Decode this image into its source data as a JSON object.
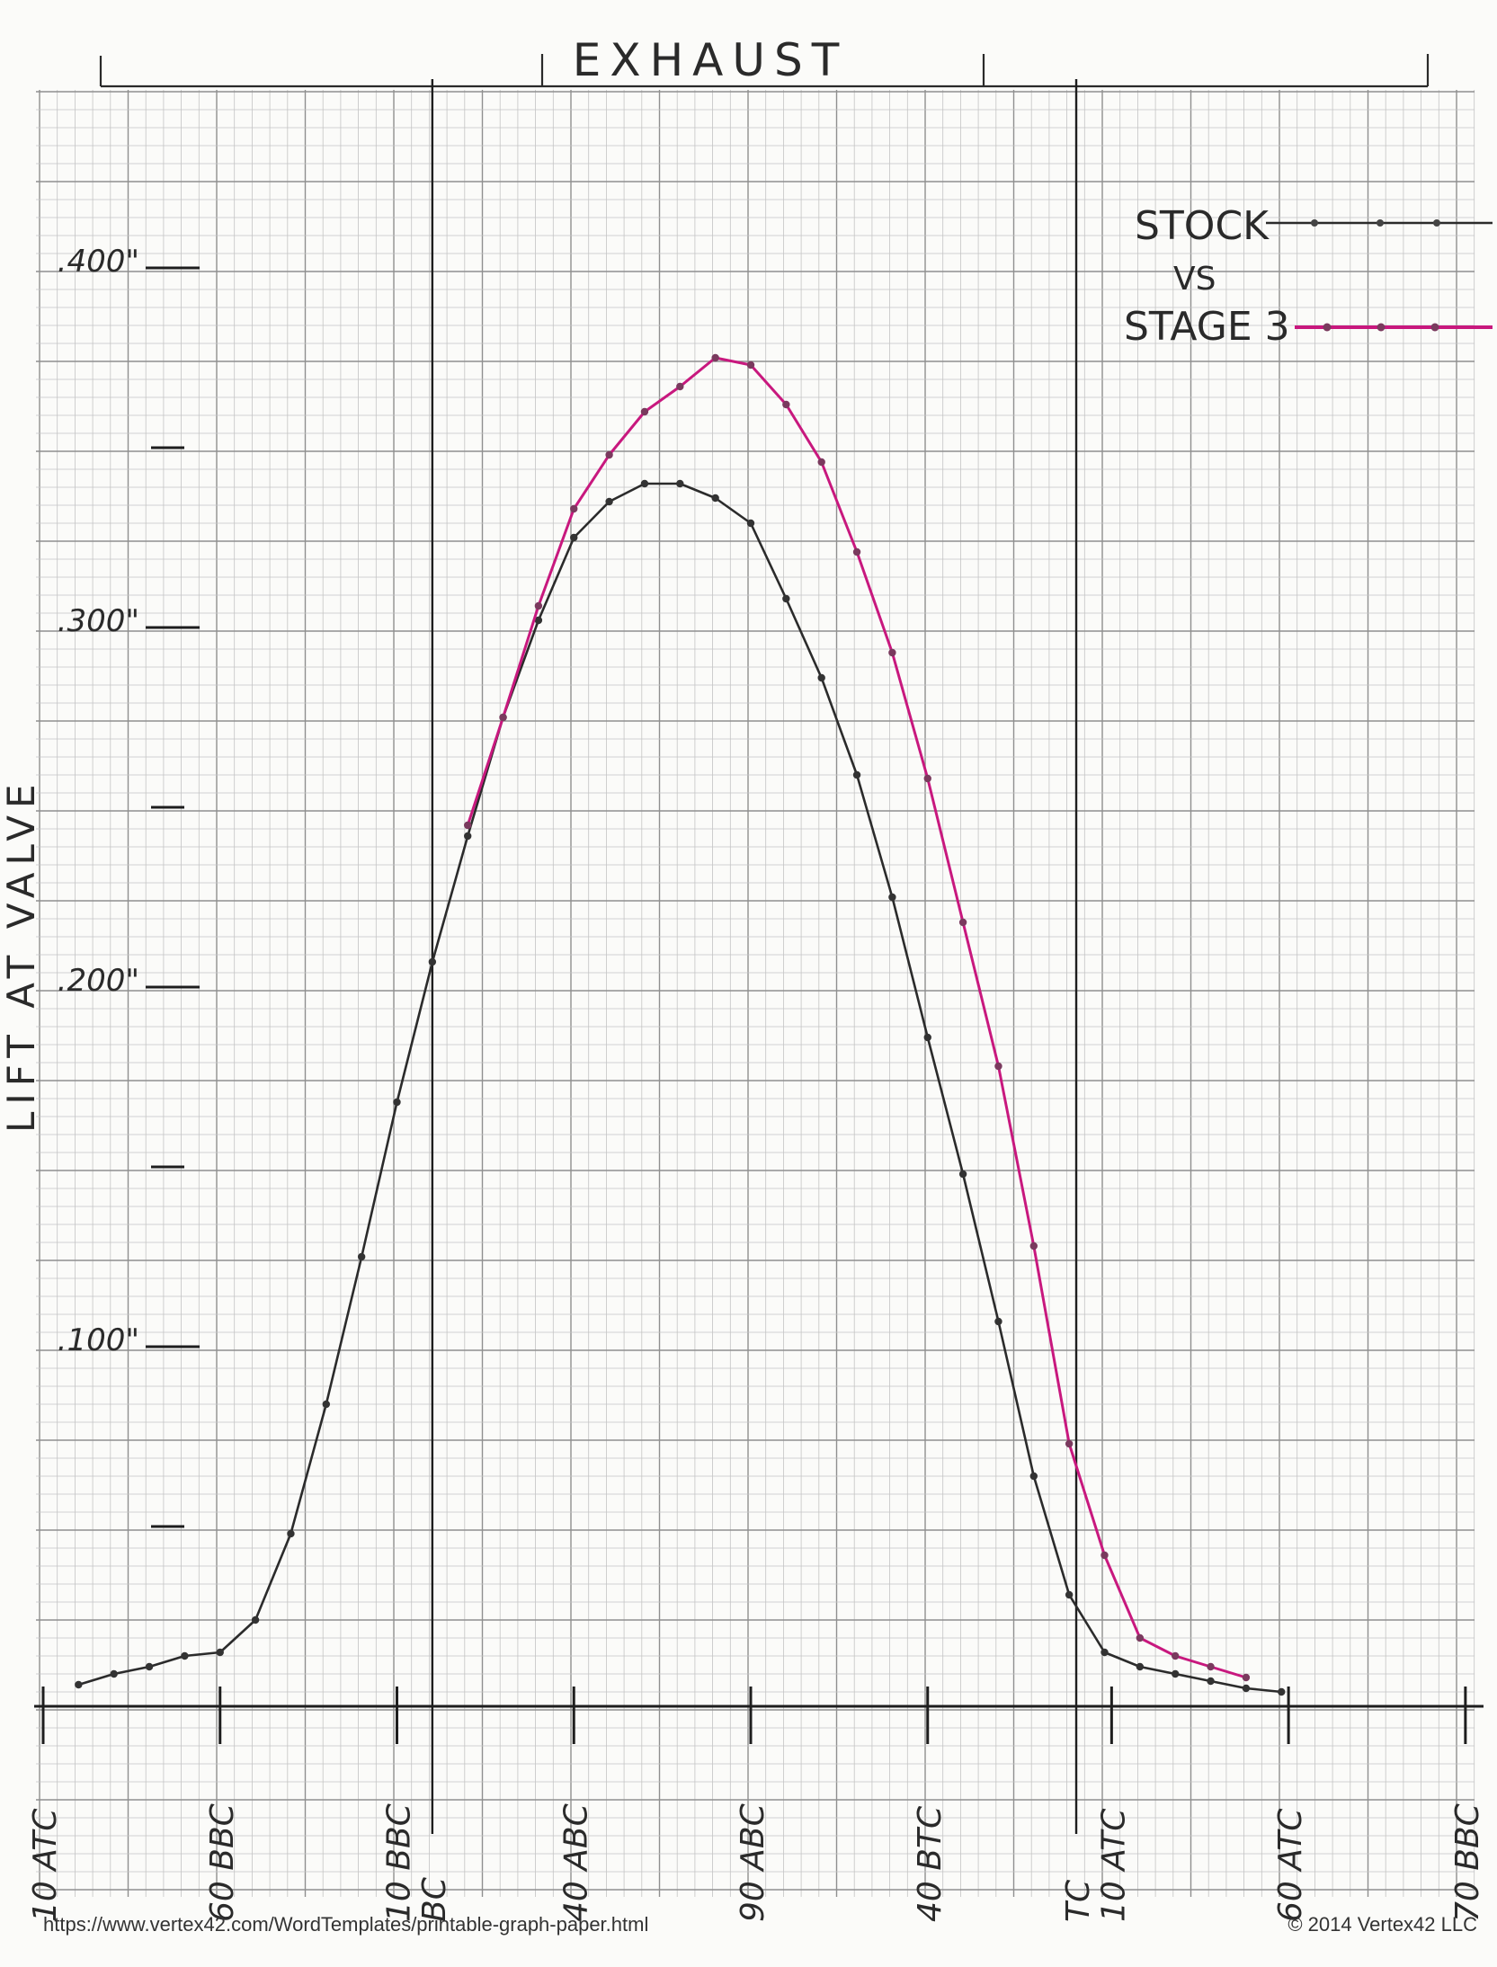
{
  "footer": {
    "url": "https://www.vertex42.com/WordTemplates/printable-graph-paper.html",
    "copyright": "© 2014 Vertex42 LLC"
  },
  "chart_data": {
    "type": "line",
    "title": "EXHAUST",
    "ylabel": "LIFT AT VALVE",
    "xlabel": "",
    "ylim": [
      0,
      0.425
    ],
    "grid": true,
    "legend": {
      "placement": "top-right",
      "entries": [
        "STOCK",
        "VS",
        "STAGE 3"
      ]
    },
    "y_tick_labels": [
      {
        "value": 0.1,
        "label": ".100\""
      },
      {
        "value": 0.2,
        "label": ".200\""
      },
      {
        "value": 0.3,
        "label": ".300\""
      },
      {
        "value": 0.4,
        "label": ".400\""
      }
    ],
    "x_tick_labels": [
      {
        "tick": 0,
        "label": "10 ATC"
      },
      {
        "tick": 5,
        "label": "60 BBC"
      },
      {
        "tick": 10,
        "label": "10 BBC"
      },
      {
        "tick": 11,
        "label": "BC"
      },
      {
        "tick": 15,
        "label": "40 ABC"
      },
      {
        "tick": 20,
        "label": "90 ABC"
      },
      {
        "tick": 25,
        "label": "40 BTC"
      },
      {
        "tick": 29.2,
        "label": "TC"
      },
      {
        "tick": 30.2,
        "label": "10 ATC"
      },
      {
        "tick": 35.2,
        "label": "60 ATC"
      },
      {
        "tick": 40.2,
        "label": "70 BBC"
      }
    ],
    "reference_lines": [
      {
        "tick": 11,
        "label": "BC"
      },
      {
        "tick": 29.2,
        "label": "TC"
      }
    ],
    "series": [
      {
        "name": "STOCK",
        "color": "#2b2b2b",
        "points": [
          [
            1,
            0.006
          ],
          [
            2,
            0.009
          ],
          [
            3,
            0.011
          ],
          [
            4,
            0.014
          ],
          [
            5,
            0.015
          ],
          [
            6,
            0.024
          ],
          [
            7,
            0.048
          ],
          [
            8,
            0.084
          ],
          [
            9,
            0.125
          ],
          [
            10,
            0.168
          ],
          [
            11,
            0.207
          ],
          [
            12,
            0.242
          ],
          [
            13,
            0.275
          ],
          [
            14,
            0.302
          ],
          [
            15,
            0.325
          ],
          [
            16,
            0.335
          ],
          [
            17,
            0.34
          ],
          [
            18,
            0.34
          ],
          [
            19,
            0.336
          ],
          [
            20,
            0.329
          ],
          [
            21,
            0.308
          ],
          [
            22,
            0.286
          ],
          [
            23,
            0.259
          ],
          [
            24,
            0.225
          ],
          [
            25,
            0.186
          ],
          [
            26,
            0.148
          ],
          [
            27,
            0.107
          ],
          [
            28,
            0.064
          ],
          [
            29,
            0.031
          ],
          [
            30,
            0.015
          ],
          [
            31,
            0.011
          ],
          [
            32,
            0.009
          ],
          [
            33,
            0.007
          ],
          [
            34,
            0.005
          ],
          [
            35,
            0.004
          ]
        ]
      },
      {
        "name": "STAGE 3",
        "color": "#c8187e",
        "points": [
          [
            12,
            0.245
          ],
          [
            13,
            0.275
          ],
          [
            14,
            0.306
          ],
          [
            15,
            0.333
          ],
          [
            16,
            0.348
          ],
          [
            17,
            0.36
          ],
          [
            18,
            0.367
          ],
          [
            19,
            0.375
          ],
          [
            20,
            0.373
          ],
          [
            21,
            0.362
          ],
          [
            22,
            0.346
          ],
          [
            23,
            0.321
          ],
          [
            24,
            0.293
          ],
          [
            25,
            0.258
          ],
          [
            26,
            0.218
          ],
          [
            27,
            0.178
          ],
          [
            28,
            0.128
          ],
          [
            29,
            0.073
          ],
          [
            30,
            0.042
          ],
          [
            31,
            0.019
          ],
          [
            32,
            0.014
          ],
          [
            33,
            0.011
          ],
          [
            34,
            0.008
          ]
        ]
      }
    ]
  }
}
